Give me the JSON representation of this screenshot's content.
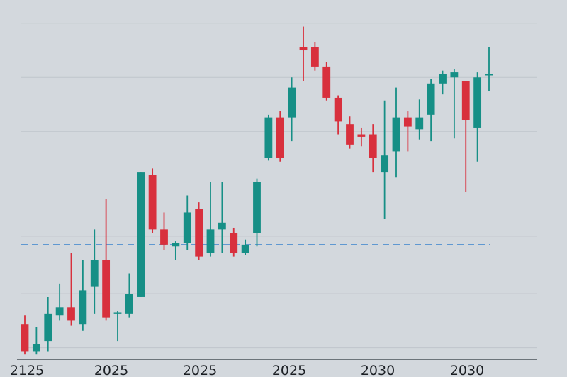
{
  "chart_data": {
    "type": "candlestick",
    "x_tick_labels": [
      "2125",
      "2025",
      "2025",
      "2025",
      "2030",
      "2030"
    ],
    "ylim": [
      0,
      100
    ],
    "gridlines": [
      3,
      19,
      36,
      52,
      67,
      83,
      99
    ],
    "reference_line": {
      "value": 33.5,
      "style": "dashed",
      "color": "#4f8fcf"
    },
    "colors": {
      "up": "#168f86",
      "down": "#d8303d",
      "background": "#d3d8dd",
      "grid": "#bfc5cb",
      "axis": "#4b525a"
    },
    "candles": [
      {
        "o": 10.0,
        "c": 2.0,
        "h": 12.5,
        "l": 1.0
      },
      {
        "o": 2.0,
        "c": 4.0,
        "h": 9.0,
        "l": 1.0
      },
      {
        "o": 5.0,
        "c": 13.0,
        "h": 18.0,
        "l": 2.0
      },
      {
        "o": 12.5,
        "c": 15.0,
        "h": 22.0,
        "l": 11.0
      },
      {
        "o": 15.0,
        "c": 11.0,
        "h": 31.0,
        "l": 9.5
      },
      {
        "o": 10.0,
        "c": 20.0,
        "h": 29.0,
        "l": 8.0
      },
      {
        "o": 21.0,
        "c": 29.0,
        "h": 38.0,
        "l": 13.0
      },
      {
        "o": 29.0,
        "c": 12.0,
        "h": 47.0,
        "l": 11.0
      },
      {
        "o": 13.0,
        "c": 13.5,
        "h": 14.0,
        "l": 5.0
      },
      {
        "o": 13.0,
        "c": 19.0,
        "h": 25.0,
        "l": 12.0
      },
      {
        "o": 18.0,
        "c": 55.0,
        "h": 55.0,
        "l": 18.0
      },
      {
        "o": 54.0,
        "c": 38.0,
        "h": 56.0,
        "l": 37.0
      },
      {
        "o": 38.0,
        "c": 33.5,
        "h": 43.0,
        "l": 32.0
      },
      {
        "o": 33.0,
        "c": 34.0,
        "h": 34.5,
        "l": 29.0
      },
      {
        "o": 34.0,
        "c": 43.0,
        "h": 48.0,
        "l": 32.0
      },
      {
        "o": 44.0,
        "c": 30.0,
        "h": 46.0,
        "l": 29.0
      },
      {
        "o": 31.0,
        "c": 38.0,
        "h": 52.0,
        "l": 30.0
      },
      {
        "o": 38.0,
        "c": 40.0,
        "h": 52.0,
        "l": 31.0
      },
      {
        "o": 37.0,
        "c": 31.0,
        "h": 38.5,
        "l": 30.0
      },
      {
        "o": 31.0,
        "c": 33.5,
        "h": 35.0,
        "l": 30.5
      },
      {
        "o": 37.0,
        "c": 52.0,
        "h": 53.0,
        "l": 33.0
      },
      {
        "o": 59.0,
        "c": 71.0,
        "h": 72.0,
        "l": 58.5
      },
      {
        "o": 71.0,
        "c": 59.0,
        "h": 73.0,
        "l": 58.0
      },
      {
        "o": 71.0,
        "c": 80.0,
        "h": 83.0,
        "l": 64.0
      },
      {
        "o": 92.0,
        "c": 91.0,
        "h": 98.0,
        "l": 82.0
      },
      {
        "o": 92.0,
        "c": 86.0,
        "h": 93.5,
        "l": 85.0
      },
      {
        "o": 86.0,
        "c": 77.0,
        "h": 87.5,
        "l": 76.0
      },
      {
        "o": 77.0,
        "c": 70.0,
        "h": 77.5,
        "l": 66.0
      },
      {
        "o": 69.0,
        "c": 63.0,
        "h": 71.5,
        "l": 62.0
      },
      {
        "o": 66.0,
        "c": 65.5,
        "h": 68.0,
        "l": 62.5
      },
      {
        "o": 66.0,
        "c": 59.0,
        "h": 69.0,
        "l": 55.0
      },
      {
        "o": 55.0,
        "c": 60.0,
        "h": 76.0,
        "l": 41.0
      },
      {
        "o": 61.0,
        "c": 71.0,
        "h": 80.0,
        "l": 53.5
      },
      {
        "o": 71.0,
        "c": 68.5,
        "h": 73.0,
        "l": 61.0
      },
      {
        "o": 67.5,
        "c": 71.0,
        "h": 76.5,
        "l": 64.5
      },
      {
        "o": 72.0,
        "c": 81.0,
        "h": 82.5,
        "l": 64.0
      },
      {
        "o": 81.0,
        "c": 84.0,
        "h": 85.0,
        "l": 78.0
      },
      {
        "o": 83.0,
        "c": 84.5,
        "h": 85.5,
        "l": 65.0
      },
      {
        "o": 82.0,
        "c": 70.5,
        "h": 82.0,
        "l": 49.0
      },
      {
        "o": 68.0,
        "c": 83.0,
        "h": 84.5,
        "l": 58.0
      },
      {
        "o": 84.0,
        "c": 84.0,
        "h": 92.0,
        "l": 79.0
      }
    ]
  }
}
